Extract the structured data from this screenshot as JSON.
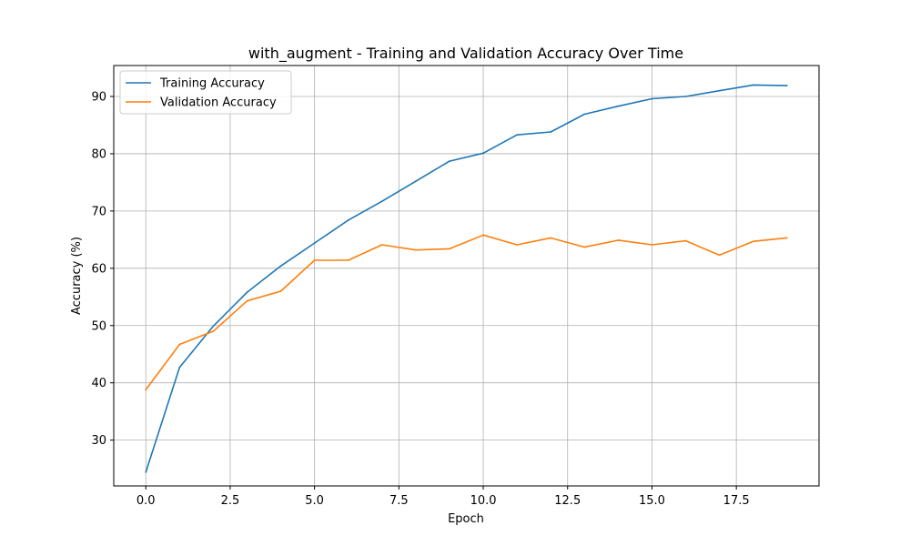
{
  "chart_data": {
    "type": "line",
    "title": "with_augment - Training and Validation Accuracy Over Time",
    "xlabel": "Epoch",
    "ylabel": "Accuracy (%)",
    "xlim": [
      -0.95,
      19.95
    ],
    "ylim": [
      22.0,
      95.4
    ],
    "xticks": [
      0.0,
      2.5,
      5.0,
      7.5,
      10.0,
      12.5,
      15.0,
      17.5
    ],
    "xtick_labels": [
      "0.0",
      "2.5",
      "5.0",
      "7.5",
      "10.0",
      "12.5",
      "15.0",
      "17.5"
    ],
    "yticks": [
      30,
      40,
      50,
      60,
      70,
      80,
      90
    ],
    "ytick_labels": [
      "30",
      "40",
      "50",
      "60",
      "70",
      "80",
      "90"
    ],
    "grid": true,
    "legend_position": "top-left",
    "x": [
      0,
      1,
      2,
      3,
      4,
      5,
      6,
      7,
      8,
      9,
      10,
      11,
      12,
      13,
      14,
      15,
      16,
      17,
      18,
      19
    ],
    "series": [
      {
        "name": "Training Accuracy",
        "color": "#1f77b4",
        "values": [
          24.4,
          42.7,
          49.9,
          55.8,
          60.4,
          64.4,
          68.4,
          71.7,
          75.2,
          78.7,
          80.1,
          83.3,
          83.8,
          86.9,
          88.3,
          89.6,
          90.0,
          91.0,
          92.0,
          91.9
        ]
      },
      {
        "name": "Validation Accuracy",
        "color": "#ff7f0e",
        "values": [
          38.8,
          46.7,
          49.0,
          54.3,
          56.0,
          61.4,
          61.4,
          64.1,
          63.2,
          63.4,
          65.8,
          64.1,
          65.3,
          63.7,
          64.9,
          64.1,
          64.8,
          62.3,
          64.7,
          65.3
        ]
      }
    ]
  }
}
